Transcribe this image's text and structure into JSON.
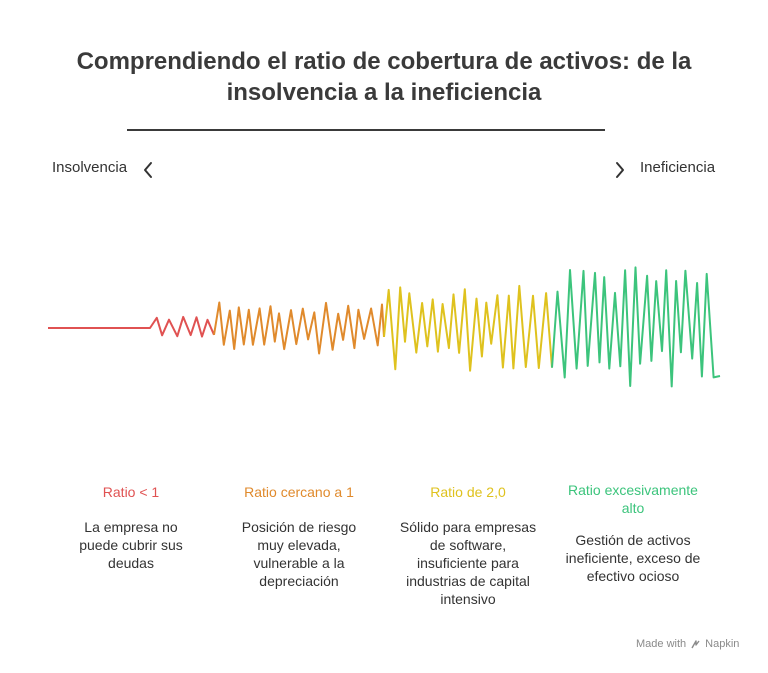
{
  "title": "Comprendiendo el ratio de cobertura de activos: de la insolvencia a la ineficiencia",
  "scale": {
    "left_label": "Insolvencia",
    "right_label": "Ineficiencia",
    "left_icon": "chevron-left-icon",
    "right_icon": "chevron-right-icon"
  },
  "categories": [
    {
      "label": "Ratio < 1",
      "description": "La empresa no puede cubrir sus deudas",
      "color": "#e05252"
    },
    {
      "label": "Ratio cercano a 1",
      "description": "Posición de riesgo muy elevada, vulnerable a la depreciación",
      "color": "#e08a2c"
    },
    {
      "label": "Ratio de 2,0",
      "description": "Sólido para empresas de software, insuficiente para industrias de capital intensivo",
      "color": "#dfc21e"
    },
    {
      "label": "Ratio excesivamente alto",
      "description": "Gestión de activos ineficiente, exceso de efectivo ocioso",
      "color": "#3cc47c"
    }
  ],
  "footer": {
    "made_with": "Made with",
    "brand": "Napkin",
    "brand_icon": "napkin-logo-icon"
  }
}
